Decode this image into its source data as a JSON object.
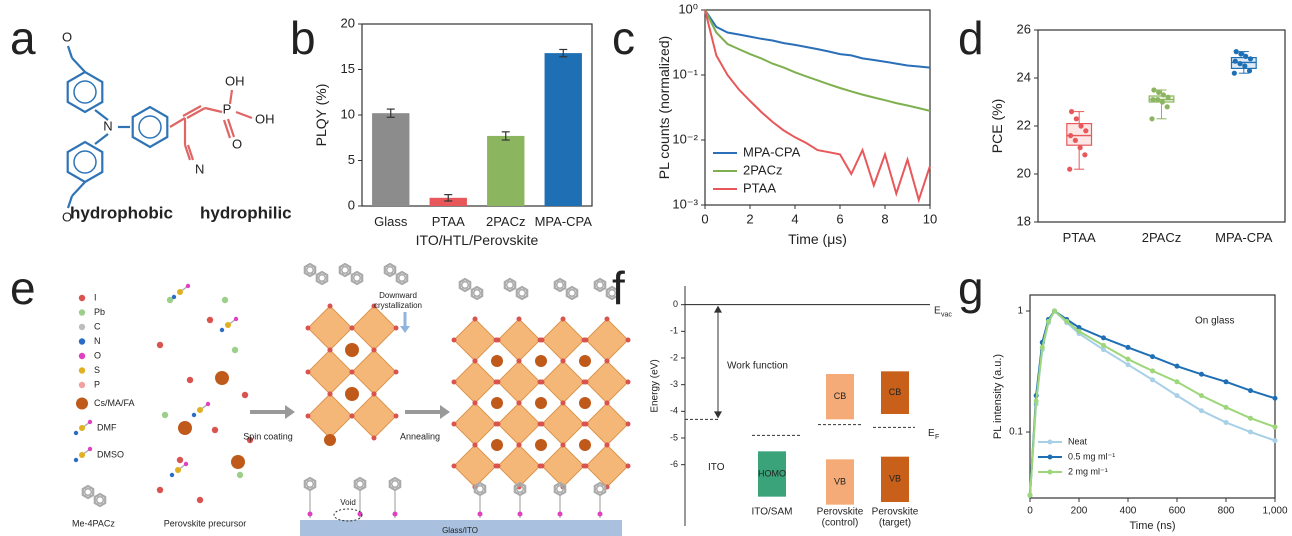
{
  "molecule": {
    "panel": "a",
    "atoms_blue": [
      "O",
      "N",
      "O"
    ],
    "atoms_red": [
      "OH",
      "P",
      "OH",
      "O",
      "N"
    ],
    "left_label": "hydrophobic",
    "right_label": "hydrophilic"
  },
  "schematic": {
    "panel": "e",
    "legend": [
      {
        "name": "I",
        "color": "#d9534f"
      },
      {
        "name": "Pb",
        "color": "#9ccf8a"
      },
      {
        "name": "C",
        "color": "#bdbdbd"
      },
      {
        "name": "N",
        "color": "#2b6cc4"
      },
      {
        "name": "O",
        "color": "#e040c0"
      },
      {
        "name": "S",
        "color": "#e0b020"
      },
      {
        "name": "P",
        "color": "#f0a0a0"
      },
      {
        "name": "Cs/MA/FA",
        "color": "#c05a1a"
      }
    ],
    "molecules": [
      "DMF",
      "DMSO",
      "Me-4PACz"
    ],
    "precursor": "Perovskite precursor",
    "step1": "Spin coating",
    "step2": "Annealing",
    "crystallization": [
      "Downward",
      "crystallization"
    ],
    "void": "Void",
    "substrate": "Glass/ITO"
  },
  "chart_data": [
    {
      "type": "bar",
      "panel": "b",
      "ylabel": "PLQY (%)",
      "xlabel": "ITO/HTL/Perovskite",
      "categories": [
        "Glass",
        "PTAA",
        "2PACz",
        "MPA-CPA"
      ],
      "values": [
        10.2,
        0.9,
        7.7,
        16.8
      ],
      "errors": [
        0.45,
        0.35,
        0.45,
        0.4
      ],
      "colors": [
        "#8c8c8c",
        "#e8585a",
        "#8cb560",
        "#1f6fb5"
      ],
      "ylim": [
        0,
        20
      ],
      "yticks": [
        0,
        5,
        10,
        15,
        20
      ]
    },
    {
      "type": "line",
      "panel": "c",
      "ylabel": "PL counts (normalized)",
      "xlabel": "Time (μs)",
      "ylog": true,
      "x": [
        0,
        0.5,
        1,
        1.5,
        2,
        2.5,
        3,
        3.5,
        4,
        4.5,
        5,
        5.5,
        6,
        6.5,
        7,
        7.5,
        8,
        8.5,
        9,
        9.5,
        10
      ],
      "series": [
        {
          "name": "MPA-CPA",
          "color": "#2a6fb8",
          "values": [
            1,
            0.55,
            0.45,
            0.42,
            0.39,
            0.36,
            0.34,
            0.31,
            0.29,
            0.27,
            0.25,
            0.23,
            0.21,
            0.2,
            0.18,
            0.17,
            0.16,
            0.15,
            0.14,
            0.135,
            0.13
          ]
        },
        {
          "name": "2PACz",
          "color": "#7fb04f",
          "values": [
            1,
            0.45,
            0.3,
            0.25,
            0.21,
            0.18,
            0.15,
            0.13,
            0.11,
            0.095,
            0.083,
            0.072,
            0.063,
            0.056,
            0.05,
            0.045,
            0.041,
            0.037,
            0.034,
            0.031,
            0.028
          ]
        },
        {
          "name": "PTAA",
          "color": "#e8585a",
          "values": [
            1,
            0.2,
            0.1,
            0.06,
            0.04,
            0.027,
            0.019,
            0.014,
            0.011,
            0.009,
            0.007,
            0.0065,
            0.006,
            0.003,
            0.007,
            0.002,
            0.006,
            0.0015,
            0.005,
            0.0012,
            0.004
          ]
        }
      ],
      "xlim": [
        0,
        10
      ],
      "xticks": [
        0,
        2,
        4,
        6,
        8,
        10
      ],
      "ylim": [
        0.001,
        1
      ],
      "yticks": [
        {
          "value": 0.001,
          "label": "10⁻³"
        },
        {
          "value": 0.01,
          "label": "10⁻²"
        },
        {
          "value": 0.1,
          "label": "10⁻¹"
        },
        {
          "value": 1,
          "label": "10⁰"
        }
      ],
      "legend": "lower left"
    },
    {
      "type": "box",
      "panel": "d",
      "ylabel": "PCE (%)",
      "categories": [
        "PTAA",
        "2PACz",
        "MPA-CPA"
      ],
      "series": [
        {
          "color": "#e8585a",
          "min": 20.2,
          "q1": 21.2,
          "median": 21.6,
          "q3": 22.1,
          "max": 22.6,
          "points": [
            20.2,
            20.8,
            21.1,
            21.4,
            21.6,
            21.8,
            22.0,
            22.3,
            22.6
          ]
        },
        {
          "color": "#8cb560",
          "min": 22.3,
          "q1": 23.0,
          "median": 23.1,
          "q3": 23.25,
          "max": 23.5,
          "points": [
            22.3,
            22.8,
            23.0,
            23.1,
            23.1,
            23.2,
            23.3,
            23.4,
            23.5
          ]
        },
        {
          "color": "#1f6fb5",
          "min": 24.2,
          "q1": 24.4,
          "median": 24.65,
          "q3": 24.85,
          "max": 25.1,
          "points": [
            24.2,
            24.3,
            24.5,
            24.6,
            24.7,
            24.8,
            24.9,
            25.0,
            25.1
          ]
        }
      ],
      "ylim": [
        18,
        26
      ],
      "yticks": [
        18,
        20,
        22,
        24,
        26
      ]
    },
    {
      "type": "energy",
      "panel": "f",
      "ylabel": "Energy (eV)",
      "ylim": [
        -8.3,
        0.7
      ],
      "yticks": [
        0,
        -1,
        -2,
        -3,
        -4,
        -5,
        -6
      ],
      "evac": "E",
      "evac_sub": "vac",
      "ef": "E",
      "ef_sub": "F",
      "work_function": "Work function",
      "ito": "ITO",
      "columns": [
        [
          "ITO/SAM"
        ],
        [
          "Perovskite",
          "(control)"
        ],
        [
          "Perovskite",
          "(target)"
        ]
      ],
      "bands": [
        {
          "label": "HOMO",
          "column": 0,
          "color": "#3aa37a",
          "values": [
            -5.5,
            -7.2
          ]
        },
        {
          "label": "CB",
          "column": 1,
          "color": "#f4ab78",
          "values": [
            -2.6,
            -4.3
          ]
        },
        {
          "label": "VB",
          "column": 1,
          "color": "#f4ab78",
          "values": [
            -5.8,
            -7.5
          ]
        },
        {
          "label": "CB",
          "column": 2,
          "color": "#c8601a",
          "values": [
            -2.5,
            -4.1
          ]
        },
        {
          "label": "VB",
          "column": 2,
          "color": "#c8601a",
          "values": [
            -5.7,
            -7.4
          ]
        }
      ],
      "levels": [
        -4.3,
        -4.9,
        -4.5,
        -4.6
      ]
    },
    {
      "type": "line",
      "panel": "g",
      "ylabel": "PL intensity (a.u.)",
      "xlabel": "Time (ns)",
      "ylog": true,
      "markers": true,
      "annotation": "On glass",
      "x": [
        0,
        25,
        50,
        75,
        100,
        150,
        200,
        300,
        400,
        500,
        600,
        700,
        800,
        900,
        1000
      ],
      "series": [
        {
          "name": "Neat",
          "color": "#a8d0e6",
          "values": [
            0.03,
            0.17,
            0.48,
            0.8,
            1,
            0.8,
            0.65,
            0.48,
            0.36,
            0.27,
            0.2,
            0.15,
            0.12,
            0.1,
            0.085
          ]
        },
        {
          "name": "0.5 mg ml⁻¹",
          "color": "#1f6fb5",
          "values": [
            0.03,
            0.2,
            0.55,
            0.85,
            1,
            0.85,
            0.73,
            0.6,
            0.5,
            0.42,
            0.35,
            0.3,
            0.26,
            0.22,
            0.19
          ]
        },
        {
          "name": "2 mg ml⁻¹",
          "color": "#9ed67a",
          "values": [
            0.03,
            0.18,
            0.5,
            0.82,
            1,
            0.82,
            0.68,
            0.52,
            0.4,
            0.32,
            0.26,
            0.2,
            0.16,
            0.13,
            0.11
          ]
        }
      ],
      "xlim": [
        0,
        1000
      ],
      "xticks": [
        0,
        200,
        400,
        600,
        800,
        {
          "value": 1000,
          "label": "1,000"
        }
      ],
      "ylim": [
        0.0285,
        1.356
      ],
      "yticks": [
        0.1,
        1
      ],
      "legend": "lower left"
    }
  ]
}
